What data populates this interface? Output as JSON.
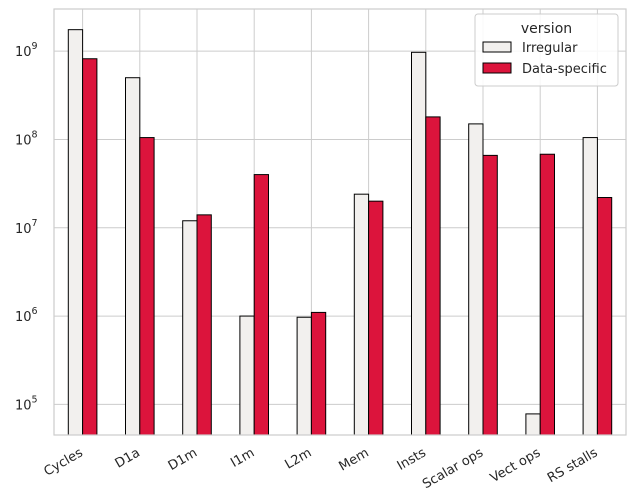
{
  "chart_data": {
    "type": "bar",
    "yscale": "log",
    "ylim": [
      45000,
      3000000000
    ],
    "yticks": [
      {
        "value": 100000,
        "base": "10",
        "exp": "5"
      },
      {
        "value": 1000000,
        "base": "10",
        "exp": "6"
      },
      {
        "value": 10000000,
        "base": "10",
        "exp": "7"
      },
      {
        "value": 100000000,
        "base": "10",
        "exp": "8"
      },
      {
        "value": 1000000000,
        "base": "10",
        "exp": "9"
      }
    ],
    "categories": [
      "Cycles",
      "D1a",
      "D1m",
      "I1m",
      "L2m",
      "Mem",
      "Insts",
      "Scalar ops",
      "Vect ops",
      "RS stalls"
    ],
    "series": [
      {
        "name": "Irregular",
        "color": "#f2f0ee",
        "values": [
          1750000000,
          500000000,
          12000000,
          1000000,
          970000,
          24000000,
          970000000,
          150000000,
          78000,
          105000000
        ]
      },
      {
        "name": "Data-specific",
        "color": "#dc143c",
        "values": [
          820000000,
          105000000,
          14000000,
          40000000,
          1100000,
          20000000,
          180000000,
          66000000,
          68000000,
          22000000
        ]
      }
    ],
    "legend": {
      "title": "version",
      "placement": "top-right"
    },
    "grid": true,
    "grid_color": "#cccccc",
    "edge_color": "#000000"
  }
}
